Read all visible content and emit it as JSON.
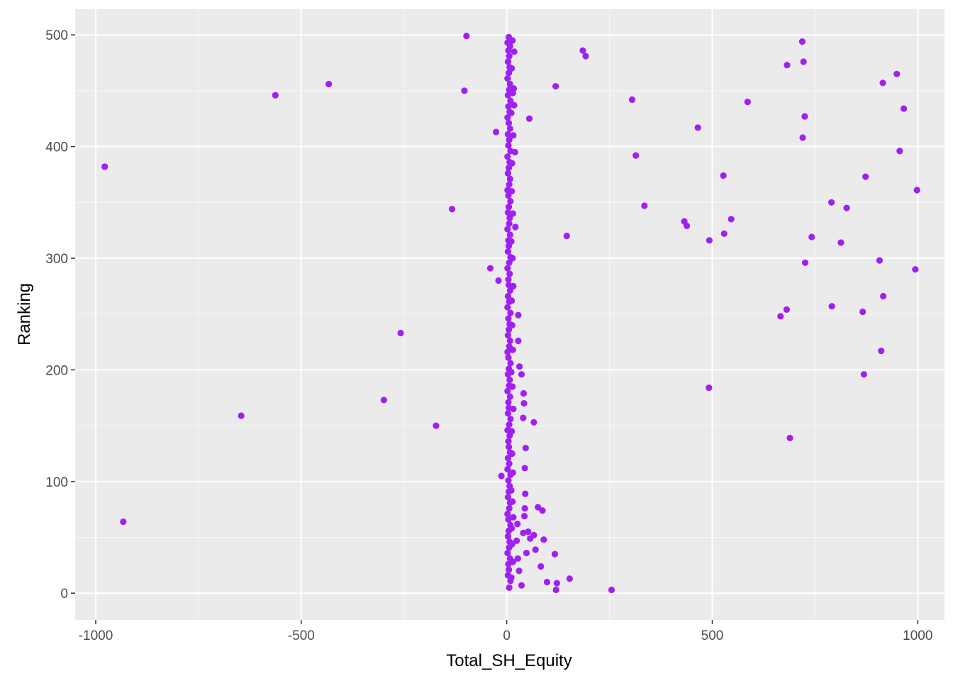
{
  "chart_data": {
    "type": "scatter",
    "xlabel": "Total_SH_Equity",
    "ylabel": "Ranking",
    "xlim": [
      -1050,
      1065
    ],
    "ylim": [
      -24,
      523
    ],
    "x_ticks": [
      -1000,
      -500,
      0,
      500,
      1000
    ],
    "x_tick_labels": [
      "-1000",
      "-500",
      "0",
      "500",
      "1000"
    ],
    "y_ticks": [
      0,
      100,
      200,
      300,
      400,
      500
    ],
    "y_tick_labels": [
      "0",
      "100",
      "200",
      "300",
      "400",
      "500"
    ],
    "grid": true,
    "theme": "gray panel with white gridlines",
    "colors": {
      "panel": "#ebebeb",
      "grid": "#ffffff",
      "point": "#a020f0"
    },
    "series": [
      {
        "values_xy": [
          [
            -98,
            499
          ],
          [
            -103,
            450
          ],
          [
            -433,
            456
          ],
          [
            -563,
            446
          ],
          [
            -978,
            382
          ],
          [
            -133,
            344
          ],
          [
            -40,
            291
          ],
          [
            -258,
            233
          ],
          [
            -299,
            173
          ],
          [
            -646,
            159
          ],
          [
            -172,
            150
          ],
          [
            -933,
            64
          ],
          [
            -13,
            105
          ],
          [
            -20,
            280
          ],
          [
            -26,
            413
          ],
          [
            185,
            486
          ],
          [
            192,
            481
          ],
          [
            119,
            454
          ],
          [
            55,
            425
          ],
          [
            305,
            442
          ],
          [
            314,
            392
          ],
          [
            335,
            347
          ],
          [
            146,
            320
          ],
          [
            255,
            3
          ],
          [
            153,
            13
          ],
          [
            122,
            9
          ],
          [
            120,
            3
          ],
          [
            117,
            35
          ],
          [
            98,
            10
          ],
          [
            83,
            24
          ],
          [
            90,
            48
          ],
          [
            87,
            74
          ],
          [
            76,
            77
          ],
          [
            70,
            39
          ],
          [
            66,
            52
          ],
          [
            66,
            153
          ],
          [
            57,
            49
          ],
          [
            52,
            55
          ],
          [
            48,
            36
          ],
          [
            46,
            130
          ],
          [
            44,
            76
          ],
          [
            43,
            69
          ],
          [
            40,
            54
          ],
          [
            41,
            179
          ],
          [
            42,
            170
          ],
          [
            40,
            157
          ],
          [
            44,
            112
          ],
          [
            45,
            89
          ],
          [
            36,
            7
          ],
          [
            36,
            196
          ],
          [
            31,
            203
          ],
          [
            28,
            226
          ],
          [
            28,
            249
          ],
          [
            21,
            328
          ],
          [
            17,
            452
          ],
          [
            18,
            485
          ],
          [
            18,
            437
          ],
          [
            20,
            395
          ],
          [
            30,
            20
          ],
          [
            27,
            31
          ],
          [
            24,
            47
          ],
          [
            26,
            62
          ],
          [
            465,
            417
          ],
          [
            432,
            333
          ],
          [
            438,
            329
          ],
          [
            493,
            316
          ],
          [
            527,
            374
          ],
          [
            529,
            322
          ],
          [
            546,
            335
          ],
          [
            586,
            440
          ],
          [
            492,
            184
          ],
          [
            666,
            248
          ],
          [
            681,
            254
          ],
          [
            682,
            473
          ],
          [
            689,
            139
          ],
          [
            719,
            494
          ],
          [
            720,
            408
          ],
          [
            722,
            476
          ],
          [
            725,
            427
          ],
          [
            726,
            296
          ],
          [
            742,
            319
          ],
          [
            790,
            350
          ],
          [
            791,
            257
          ],
          [
            813,
            314
          ],
          [
            827,
            345
          ],
          [
            866,
            252
          ],
          [
            869,
            196
          ],
          [
            873,
            373
          ],
          [
            907,
            298
          ],
          [
            911,
            217
          ],
          [
            915,
            457
          ],
          [
            916,
            266
          ],
          [
            949,
            465
          ],
          [
            956,
            396
          ],
          [
            966,
            434
          ],
          [
            994,
            290
          ],
          [
            998,
            361
          ],
          [
            5,
            498
          ],
          [
            2,
            493
          ],
          [
            8,
            490
          ],
          [
            4,
            486
          ],
          [
            6,
            481
          ],
          [
            3,
            476
          ],
          [
            7,
            471
          ],
          [
            5,
            466
          ],
          [
            2,
            461
          ],
          [
            8,
            456
          ],
          [
            6,
            451
          ],
          [
            3,
            446
          ],
          [
            9,
            441
          ],
          [
            4,
            436
          ],
          [
            7,
            431
          ],
          [
            2,
            426
          ],
          [
            5,
            421
          ],
          [
            8,
            416
          ],
          [
            3,
            411
          ],
          [
            6,
            406
          ],
          [
            4,
            401
          ],
          [
            9,
            396
          ],
          [
            2,
            391
          ],
          [
            7,
            386
          ],
          [
            5,
            381
          ],
          [
            3,
            376
          ],
          [
            8,
            371
          ],
          [
            6,
            366
          ],
          [
            2,
            361
          ],
          [
            4,
            356
          ],
          [
            9,
            351
          ],
          [
            5,
            346
          ],
          [
            3,
            341
          ],
          [
            7,
            336
          ],
          [
            6,
            331
          ],
          [
            2,
            326
          ],
          [
            8,
            321
          ],
          [
            4,
            316
          ],
          [
            5,
            311
          ],
          [
            3,
            306
          ],
          [
            9,
            301
          ],
          [
            6,
            296
          ],
          [
            2,
            291
          ],
          [
            7,
            286
          ],
          [
            4,
            281
          ],
          [
            5,
            276
          ],
          [
            8,
            271
          ],
          [
            3,
            266
          ],
          [
            6,
            261
          ],
          [
            2,
            256
          ],
          [
            9,
            251
          ],
          [
            4,
            246
          ],
          [
            7,
            241
          ],
          [
            5,
            236
          ],
          [
            3,
            231
          ],
          [
            8,
            226
          ],
          [
            6,
            221
          ],
          [
            2,
            216
          ],
          [
            4,
            211
          ],
          [
            9,
            206
          ],
          [
            5,
            201
          ],
          [
            3,
            196
          ],
          [
            7,
            191
          ],
          [
            6,
            186
          ],
          [
            2,
            181
          ],
          [
            8,
            176
          ],
          [
            4,
            171
          ],
          [
            5,
            166
          ],
          [
            3,
            161
          ],
          [
            9,
            156
          ],
          [
            6,
            151
          ],
          [
            2,
            146
          ],
          [
            7,
            141
          ],
          [
            4,
            136
          ],
          [
            5,
            131
          ],
          [
            8,
            126
          ],
          [
            3,
            121
          ],
          [
            6,
            116
          ],
          [
            2,
            111
          ],
          [
            9,
            106
          ],
          [
            4,
            101
          ],
          [
            7,
            96
          ],
          [
            5,
            91
          ],
          [
            3,
            86
          ],
          [
            8,
            81
          ],
          [
            6,
            76
          ],
          [
            2,
            71
          ],
          [
            4,
            66
          ],
          [
            9,
            61
          ],
          [
            5,
            56
          ],
          [
            3,
            51
          ],
          [
            7,
            46
          ],
          [
            6,
            41
          ],
          [
            2,
            36
          ],
          [
            8,
            31
          ],
          [
            4,
            26
          ],
          [
            5,
            21
          ],
          [
            3,
            16
          ],
          [
            9,
            11
          ],
          [
            6,
            5
          ],
          [
            14,
            495
          ],
          [
            12,
            470
          ],
          [
            15,
            448
          ],
          [
            11,
            430
          ],
          [
            16,
            410
          ],
          [
            13,
            385
          ],
          [
            12,
            360
          ],
          [
            15,
            340
          ],
          [
            11,
            315
          ],
          [
            14,
            300
          ],
          [
            16,
            275
          ],
          [
            12,
            262
          ],
          [
            13,
            240
          ],
          [
            15,
            218
          ],
          [
            11,
            198
          ],
          [
            14,
            185
          ],
          [
            16,
            165
          ],
          [
            12,
            145
          ],
          [
            13,
            125
          ],
          [
            15,
            108
          ],
          [
            11,
            92
          ],
          [
            14,
            82
          ],
          [
            16,
            68
          ],
          [
            12,
            58
          ],
          [
            13,
            44
          ],
          [
            15,
            28
          ],
          [
            11,
            14
          ]
        ]
      }
    ]
  }
}
